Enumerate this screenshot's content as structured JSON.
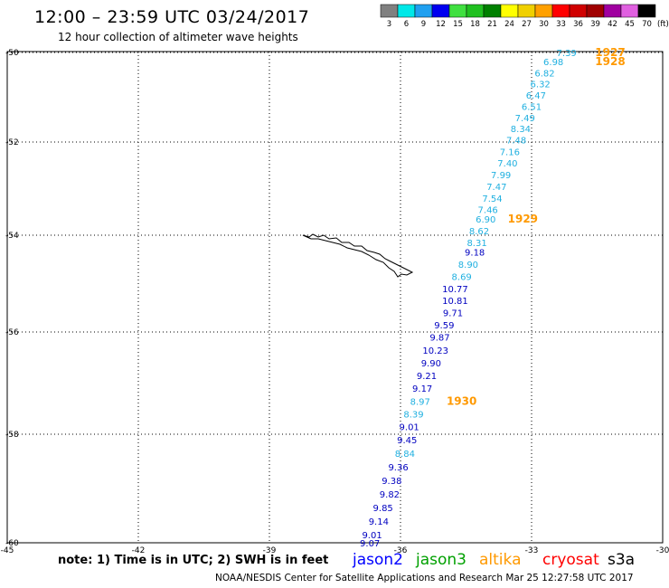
{
  "header": {
    "title": "12:00 – 23:59 UTC 03/24/2017",
    "subtitle": "12 hour collection of altimeter wave heights"
  },
  "color_scale": {
    "bins": [
      {
        "color": "#808080",
        "label": "3"
      },
      {
        "color": "#00e8e8",
        "label": "6"
      },
      {
        "color": "#20a0f0",
        "label": "9"
      },
      {
        "color": "#0000f0",
        "label": "12"
      },
      {
        "color": "#40e040",
        "label": "15"
      },
      {
        "color": "#20c020",
        "label": "18"
      },
      {
        "color": "#008000",
        "label": "21"
      },
      {
        "color": "#ffff00",
        "label": "24"
      },
      {
        "color": "#f0d000",
        "label": "27"
      },
      {
        "color": "#ffa000",
        "label": "30"
      },
      {
        "color": "#ff0000",
        "label": "33"
      },
      {
        "color": "#d00000",
        "label": "36"
      },
      {
        "color": "#a00000",
        "label": "39"
      },
      {
        "color": "#a000a0",
        "label": "42"
      },
      {
        "color": "#e060e0",
        "label": "45"
      },
      {
        "color": "#000000",
        "label": "70"
      }
    ],
    "unit": "(ft)"
  },
  "axes": {
    "lat_ticks": [
      "-50",
      "-52",
      "-54",
      "-56",
      "-58",
      "-60"
    ],
    "lon_ticks": [
      "-45",
      "-42",
      "-39",
      "-36",
      "-33",
      "-30"
    ]
  },
  "track": {
    "points": [
      {
        "lat": -50.0,
        "lon": -32.2,
        "v": "7.39",
        "c": "#20b0e0"
      },
      {
        "lat": -50.2,
        "lon": -32.5,
        "v": "6.98",
        "c": "#20b0e0"
      },
      {
        "lat": -50.45,
        "lon": -32.7,
        "v": "6.82",
        "c": "#20b0e0"
      },
      {
        "lat": -50.7,
        "lon": -32.8,
        "v": "6.32",
        "c": "#20b0e0"
      },
      {
        "lat": -50.95,
        "lon": -32.9,
        "v": "6.47",
        "c": "#20b0e0"
      },
      {
        "lat": -51.2,
        "lon": -33.0,
        "v": "6.51",
        "c": "#20b0e0"
      },
      {
        "lat": -51.45,
        "lon": -33.15,
        "v": "7.49",
        "c": "#20b0e0"
      },
      {
        "lat": -51.7,
        "lon": -33.25,
        "v": "8.34",
        "c": "#20b0e0"
      },
      {
        "lat": -51.95,
        "lon": -33.35,
        "v": "7.48",
        "c": "#20b0e0"
      },
      {
        "lat": -52.2,
        "lon": -33.5,
        "v": "7.16",
        "c": "#20b0e0"
      },
      {
        "lat": -52.45,
        "lon": -33.55,
        "v": "7.40",
        "c": "#20b0e0"
      },
      {
        "lat": -52.7,
        "lon": -33.7,
        "v": "7.99",
        "c": "#20b0e0"
      },
      {
        "lat": -52.95,
        "lon": -33.8,
        "v": "7.47",
        "c": "#20b0e0"
      },
      {
        "lat": -53.2,
        "lon": -33.9,
        "v": "7.54",
        "c": "#20b0e0"
      },
      {
        "lat": -53.45,
        "lon": -34.0,
        "v": "7.46",
        "c": "#20b0e0"
      },
      {
        "lat": -53.65,
        "lon": -34.05,
        "v": "6.90",
        "c": "#20b0e0"
      },
      {
        "lat": -53.9,
        "lon": -34.2,
        "v": "8.62",
        "c": "#20b0e0"
      },
      {
        "lat": -54.15,
        "lon": -34.25,
        "v": "8.31",
        "c": "#20b0e0"
      },
      {
        "lat": -54.35,
        "lon": -34.3,
        "v": "9.18",
        "c": "#0000c0"
      },
      {
        "lat": -54.6,
        "lon": -34.45,
        "v": "8.90",
        "c": "#20b0e0"
      },
      {
        "lat": -54.85,
        "lon": -34.6,
        "v": "8.69",
        "c": "#20b0e0"
      },
      {
        "lat": -55.1,
        "lon": -34.75,
        "v": "10.77",
        "c": "#0000c0"
      },
      {
        "lat": -55.35,
        "lon": -34.75,
        "v": "10.81",
        "c": "#0000c0"
      },
      {
        "lat": -55.6,
        "lon": -34.8,
        "v": "9.71",
        "c": "#0000c0"
      },
      {
        "lat": -55.85,
        "lon": -35.0,
        "v": "9.59",
        "c": "#0000c0"
      },
      {
        "lat": -56.1,
        "lon": -35.1,
        "v": "9.87",
        "c": "#0000c0"
      },
      {
        "lat": -56.35,
        "lon": -35.2,
        "v": "10.23",
        "c": "#0000c0"
      },
      {
        "lat": -56.6,
        "lon": -35.3,
        "v": "9.90",
        "c": "#0000c0"
      },
      {
        "lat": -56.85,
        "lon": -35.4,
        "v": "9.21",
        "c": "#0000c0"
      },
      {
        "lat": -57.1,
        "lon": -35.5,
        "v": "9.17",
        "c": "#0000c0"
      },
      {
        "lat": -57.35,
        "lon": -35.55,
        "v": "8.97",
        "c": "#20b0e0"
      },
      {
        "lat": -57.6,
        "lon": -35.7,
        "v": "8.39",
        "c": "#20b0e0"
      },
      {
        "lat": -57.85,
        "lon": -35.8,
        "v": "9.01",
        "c": "#0000c0"
      },
      {
        "lat": -58.1,
        "lon": -35.85,
        "v": "9.45",
        "c": "#0000c0"
      },
      {
        "lat": -58.35,
        "lon": -35.9,
        "v": "8.84",
        "c": "#20b0e0"
      },
      {
        "lat": -58.6,
        "lon": -36.05,
        "v": "9.36",
        "c": "#0000c0"
      },
      {
        "lat": -58.85,
        "lon": -36.2,
        "v": "9.38",
        "c": "#0000c0"
      },
      {
        "lat": -59.1,
        "lon": -36.25,
        "v": "9.82",
        "c": "#0000c0"
      },
      {
        "lat": -59.35,
        "lon": -36.4,
        "v": "9.85",
        "c": "#0000c0"
      },
      {
        "lat": -59.6,
        "lon": -36.5,
        "v": "9.14",
        "c": "#0000c0"
      },
      {
        "lat": -59.85,
        "lon": -36.65,
        "v": "9.01",
        "c": "#0000c0"
      },
      {
        "lat": -60.1,
        "lon": -36.7,
        "v": "9.07",
        "c": "#0000c0"
      }
    ],
    "times": [
      {
        "lat": -50.0,
        "lon": -31.2,
        "v": "1927"
      },
      {
        "lat": -50.2,
        "lon": -31.2,
        "v": "1928"
      },
      {
        "lat": -53.65,
        "lon": -33.2,
        "v": "1929"
      },
      {
        "lat": -57.35,
        "lon": -34.6,
        "v": "1930"
      }
    ]
  },
  "note": "note: 1) Time is in UTC; 2) SWH is in feet",
  "satellites": [
    {
      "name": "jason2",
      "color": "#0000ff"
    },
    {
      "name": "jason3",
      "color": "#00a000"
    },
    {
      "name": "altika",
      "color": "#ff9900"
    },
    {
      "name": "cryosat",
      "color": "#ff0000"
    },
    {
      "name": "s3a",
      "color": "#000000"
    }
  ],
  "footer": "NOAA/NESDIS Center for Satellite Applications and Research    Mar 25 12:27:58 UTC 2017"
}
